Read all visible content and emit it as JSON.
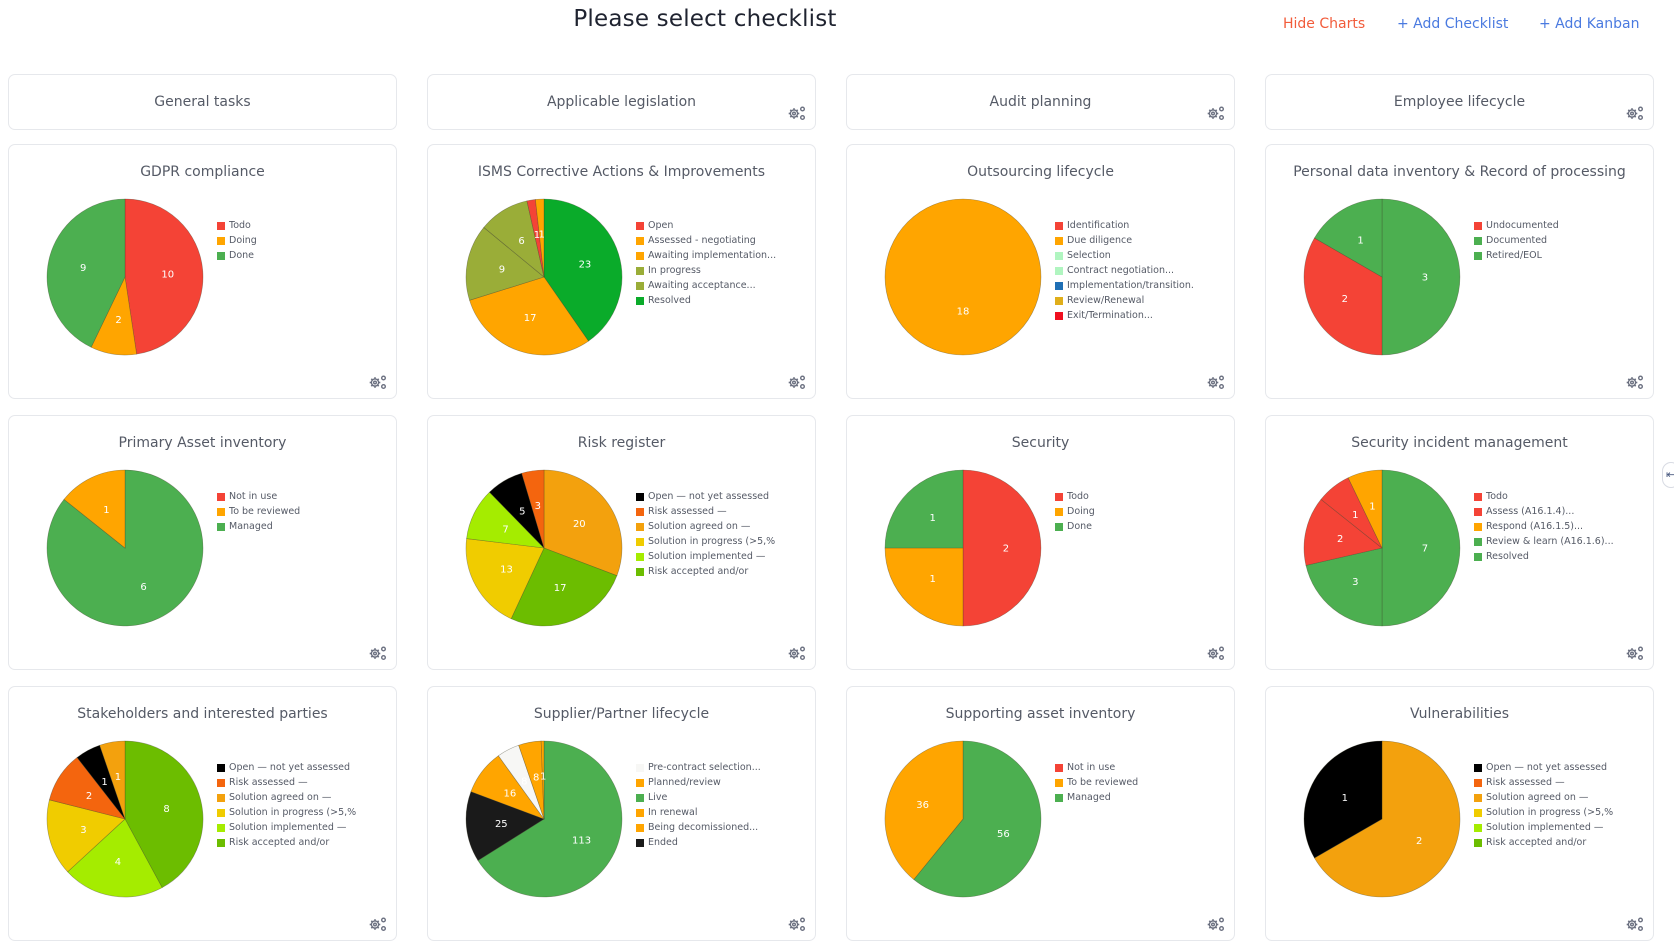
{
  "header": {
    "title": "Please select checklist",
    "hide_charts": "Hide Charts",
    "add_checklist": "+ Add Checklist",
    "add_kanban": "+ Add Kanban"
  },
  "colors": {
    "hide_charts": "#f25c3b",
    "links": "#4a7ae0"
  },
  "small_cards": [
    {
      "title": "General tasks",
      "gear": false
    },
    {
      "title": "Applicable legislation",
      "gear": true
    },
    {
      "title": "Audit planning",
      "gear": true
    },
    {
      "title": "Employee lifecycle",
      "gear": true
    }
  ],
  "chart_data": [
    {
      "type": "pie",
      "title": "GDPR compliance",
      "categories": [
        "Todo",
        "Doing",
        "Done"
      ],
      "values": [
        10,
        2,
        9
      ],
      "colors": [
        "#f44336",
        "#ffa500",
        "#4caf50"
      ]
    },
    {
      "type": "pie",
      "title": "ISMS Corrective Actions & Improvements",
      "categories": [
        "Open",
        "Assessed - negotiating",
        "Awaiting implementation...",
        "In progress",
        "Awaiting acceptance...",
        "Resolved"
      ],
      "values": [
        1,
        1,
        17,
        9,
        6,
        23
      ],
      "colors": [
        "#f44336",
        "#ffa500",
        "#ffa500",
        "#9aad38",
        "#9aad38",
        "#0aab2a"
      ],
      "slice_order": [
        5,
        2,
        3,
        4,
        0,
        1
      ]
    },
    {
      "type": "pie",
      "title": "Outsourcing lifecycle",
      "categories": [
        "Identification",
        "Due diligence",
        "Selection",
        "Contract negotiation...",
        "Implementation/transition.",
        "Review/Renewal",
        "Exit/Termination..."
      ],
      "values": [
        0,
        18,
        0,
        0,
        0,
        0,
        0
      ],
      "colors": [
        "#f44336",
        "#ffa500",
        "#b0f5c0",
        "#b0f5c0",
        "#1f6fb5",
        "#e0ae1a",
        "#f01020"
      ]
    },
    {
      "type": "pie",
      "title": "Personal data inventory & Record of processing",
      "categories": [
        "Undocumented",
        "Documented",
        "Retired/EOL"
      ],
      "values": [
        2,
        3,
        1
      ],
      "colors": [
        "#f44336",
        "#4caf50",
        "#4caf50"
      ],
      "slice_order": [
        1,
        0,
        2
      ]
    },
    {
      "type": "pie",
      "title": "Primary Asset inventory",
      "categories": [
        "Not in use",
        "To be reviewed",
        "Managed"
      ],
      "values": [
        0,
        1,
        6
      ],
      "colors": [
        "#f44336",
        "#ffa500",
        "#4caf50"
      ],
      "slice_order": [
        2,
        1,
        0
      ]
    },
    {
      "type": "pie",
      "title": "Risk register",
      "categories": [
        "Open — not yet assessed",
        "Risk assessed —",
        "Solution agreed on —",
        "Solution in progress (>5,%",
        "Solution implemented —",
        "Risk accepted and/or"
      ],
      "values": [
        5,
        3,
        20,
        13,
        7,
        17
      ],
      "colors": [
        "#000000",
        "#f4650e",
        "#f3a10d",
        "#f0cc00",
        "#a5ec00",
        "#6cbd00"
      ],
      "slice_order": [
        2,
        5,
        3,
        4,
        0,
        1
      ]
    },
    {
      "type": "pie",
      "title": "Security",
      "categories": [
        "Todo",
        "Doing",
        "Done"
      ],
      "values": [
        2,
        1,
        1
      ],
      "colors": [
        "#f44336",
        "#ffa500",
        "#4caf50"
      ]
    },
    {
      "type": "pie",
      "title": "Security incident management",
      "categories": [
        "Todo",
        "Assess (A16.1.4)...",
        "Respond (A16.1.5)...",
        "Review & learn (A16.1.6)...",
        "Resolved"
      ],
      "values": [
        2,
        1,
        1,
        3,
        7
      ],
      "colors": [
        "#f44336",
        "#f44336",
        "#ffa500",
        "#4caf50",
        "#4caf50"
      ],
      "slice_order": [
        4,
        3,
        0,
        1,
        2
      ]
    },
    {
      "type": "pie",
      "title": "Stakeholders and interested parties",
      "categories": [
        "Open — not yet assessed",
        "Risk assessed —",
        "Solution agreed on —",
        "Solution in progress (>5,%",
        "Solution implemented —",
        "Risk accepted and/or"
      ],
      "values": [
        1,
        2,
        1,
        3,
        4,
        8
      ],
      "colors": [
        "#000000",
        "#f4650e",
        "#f3a10d",
        "#f0cc00",
        "#a5ec00",
        "#6cbd00"
      ],
      "slice_order": [
        5,
        4,
        3,
        1,
        0,
        2
      ]
    },
    {
      "type": "pie",
      "title": "Supplier/Partner lifecycle",
      "categories": [
        "Pre-contract selection...",
        "Planned/review",
        "Live",
        "In renewal",
        "Being decomissioned...",
        "Ended"
      ],
      "values": [
        8,
        16,
        113,
        8,
        1,
        25
      ],
      "colors": [
        "#f7f7f5",
        "#ffa500",
        "#4caf50",
        "#ffa500",
        "#ffa500",
        "#1a1a1a"
      ],
      "slice_order": [
        2,
        5,
        1,
        0,
        3,
        4
      ]
    },
    {
      "type": "pie",
      "title": "Supporting asset inventory",
      "categories": [
        "Not in use",
        "To be reviewed",
        "Managed"
      ],
      "values": [
        0,
        36,
        56
      ],
      "colors": [
        "#f44336",
        "#ffa500",
        "#4caf50"
      ],
      "slice_order": [
        2,
        1,
        0
      ]
    },
    {
      "type": "pie",
      "title": "Vulnerabilities",
      "categories": [
        "Open — not yet assessed",
        "Risk assessed —",
        "Solution agreed on —",
        "Solution in progress (>5,%",
        "Solution implemented —",
        "Risk accepted and/or"
      ],
      "values": [
        1,
        0,
        2,
        0,
        0,
        0
      ],
      "colors": [
        "#000000",
        "#f4650e",
        "#f3a10d",
        "#f0cc00",
        "#a5ec00",
        "#6cbd00"
      ],
      "slice_order": [
        2,
        0
      ]
    }
  ]
}
